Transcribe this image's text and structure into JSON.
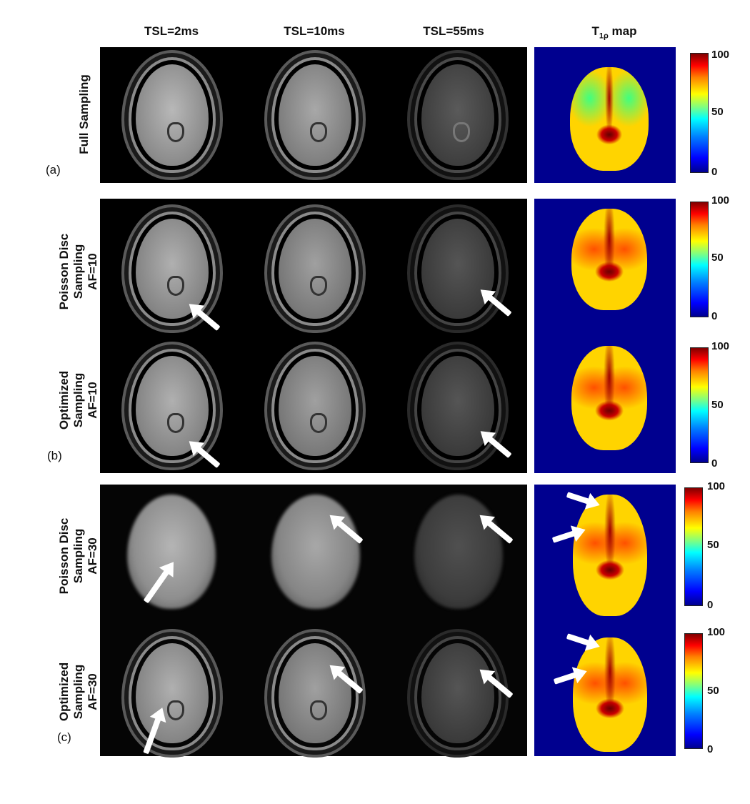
{
  "headers": {
    "col1": "TSL=2ms",
    "col2": "TSL=10ms",
    "col3": "TSL=55ms",
    "col4_main": "T",
    "col4_sub": "1ρ",
    "col4_rest": " map"
  },
  "rows": {
    "full_sampling": "Full Sampling",
    "poisson_10_l1": "Poisson Disc",
    "poisson_10_l2": "Sampling",
    "poisson_10_l3": "AF=10",
    "optimized_10_l1": "Optimized",
    "optimized_10_l2": "Sampling",
    "optimized_10_l3": "AF=10",
    "poisson_30_l1": "Poisson Disc",
    "poisson_30_l2": "Sampling",
    "poisson_30_l3": "AF=30",
    "optimized_30_l1": "Optimized",
    "optimized_30_l2": "Sampling",
    "optimized_30_l3": "AF=30"
  },
  "panel_letters": {
    "a": "(a)",
    "b": "(b)",
    "c": "(c)"
  },
  "colorbar": {
    "max": "100",
    "mid": "50",
    "min": "0"
  },
  "colors": {
    "map_background": "#00008f",
    "image_background": "#000000"
  }
}
